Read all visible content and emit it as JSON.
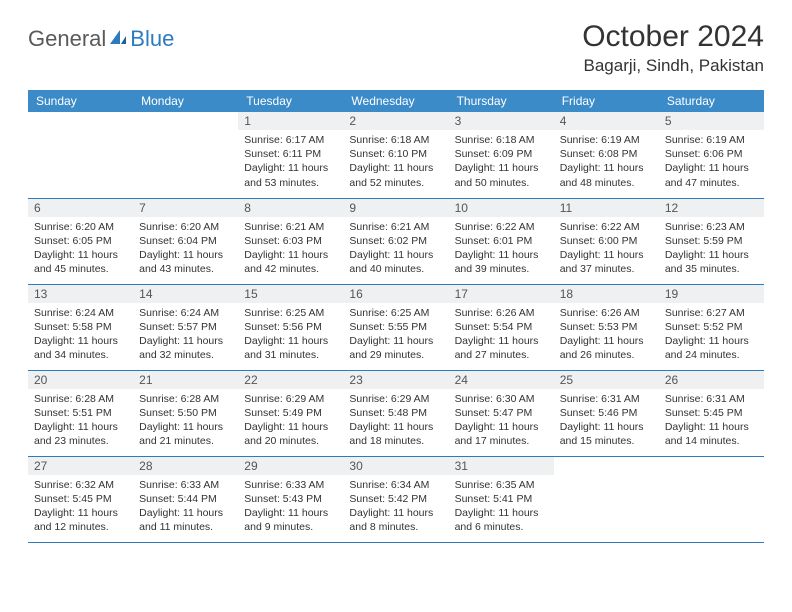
{
  "logo": {
    "text1": "General",
    "text2": "Blue"
  },
  "title": "October 2024",
  "location": "Bagarji, Sindh, Pakistan",
  "colors": {
    "header_bg": "#3b8bc9",
    "header_text": "#ffffff",
    "daynum_bg": "#eef0f1",
    "row_border": "#2d7bbf",
    "text": "#333333",
    "logo_gray": "#5a5a5a",
    "logo_blue": "#2d7bbf"
  },
  "weekdays": [
    "Sunday",
    "Monday",
    "Tuesday",
    "Wednesday",
    "Thursday",
    "Friday",
    "Saturday"
  ],
  "cells": [
    {
      "day": "",
      "sunrise": "",
      "sunset": "",
      "daylight": ""
    },
    {
      "day": "",
      "sunrise": "",
      "sunset": "",
      "daylight": ""
    },
    {
      "day": "1",
      "sunrise": "Sunrise: 6:17 AM",
      "sunset": "Sunset: 6:11 PM",
      "daylight": "Daylight: 11 hours and 53 minutes."
    },
    {
      "day": "2",
      "sunrise": "Sunrise: 6:18 AM",
      "sunset": "Sunset: 6:10 PM",
      "daylight": "Daylight: 11 hours and 52 minutes."
    },
    {
      "day": "3",
      "sunrise": "Sunrise: 6:18 AM",
      "sunset": "Sunset: 6:09 PM",
      "daylight": "Daylight: 11 hours and 50 minutes."
    },
    {
      "day": "4",
      "sunrise": "Sunrise: 6:19 AM",
      "sunset": "Sunset: 6:08 PM",
      "daylight": "Daylight: 11 hours and 48 minutes."
    },
    {
      "day": "5",
      "sunrise": "Sunrise: 6:19 AM",
      "sunset": "Sunset: 6:06 PM",
      "daylight": "Daylight: 11 hours and 47 minutes."
    },
    {
      "day": "6",
      "sunrise": "Sunrise: 6:20 AM",
      "sunset": "Sunset: 6:05 PM",
      "daylight": "Daylight: 11 hours and 45 minutes."
    },
    {
      "day": "7",
      "sunrise": "Sunrise: 6:20 AM",
      "sunset": "Sunset: 6:04 PM",
      "daylight": "Daylight: 11 hours and 43 minutes."
    },
    {
      "day": "8",
      "sunrise": "Sunrise: 6:21 AM",
      "sunset": "Sunset: 6:03 PM",
      "daylight": "Daylight: 11 hours and 42 minutes."
    },
    {
      "day": "9",
      "sunrise": "Sunrise: 6:21 AM",
      "sunset": "Sunset: 6:02 PM",
      "daylight": "Daylight: 11 hours and 40 minutes."
    },
    {
      "day": "10",
      "sunrise": "Sunrise: 6:22 AM",
      "sunset": "Sunset: 6:01 PM",
      "daylight": "Daylight: 11 hours and 39 minutes."
    },
    {
      "day": "11",
      "sunrise": "Sunrise: 6:22 AM",
      "sunset": "Sunset: 6:00 PM",
      "daylight": "Daylight: 11 hours and 37 minutes."
    },
    {
      "day": "12",
      "sunrise": "Sunrise: 6:23 AM",
      "sunset": "Sunset: 5:59 PM",
      "daylight": "Daylight: 11 hours and 35 minutes."
    },
    {
      "day": "13",
      "sunrise": "Sunrise: 6:24 AM",
      "sunset": "Sunset: 5:58 PM",
      "daylight": "Daylight: 11 hours and 34 minutes."
    },
    {
      "day": "14",
      "sunrise": "Sunrise: 6:24 AM",
      "sunset": "Sunset: 5:57 PM",
      "daylight": "Daylight: 11 hours and 32 minutes."
    },
    {
      "day": "15",
      "sunrise": "Sunrise: 6:25 AM",
      "sunset": "Sunset: 5:56 PM",
      "daylight": "Daylight: 11 hours and 31 minutes."
    },
    {
      "day": "16",
      "sunrise": "Sunrise: 6:25 AM",
      "sunset": "Sunset: 5:55 PM",
      "daylight": "Daylight: 11 hours and 29 minutes."
    },
    {
      "day": "17",
      "sunrise": "Sunrise: 6:26 AM",
      "sunset": "Sunset: 5:54 PM",
      "daylight": "Daylight: 11 hours and 27 minutes."
    },
    {
      "day": "18",
      "sunrise": "Sunrise: 6:26 AM",
      "sunset": "Sunset: 5:53 PM",
      "daylight": "Daylight: 11 hours and 26 minutes."
    },
    {
      "day": "19",
      "sunrise": "Sunrise: 6:27 AM",
      "sunset": "Sunset: 5:52 PM",
      "daylight": "Daylight: 11 hours and 24 minutes."
    },
    {
      "day": "20",
      "sunrise": "Sunrise: 6:28 AM",
      "sunset": "Sunset: 5:51 PM",
      "daylight": "Daylight: 11 hours and 23 minutes."
    },
    {
      "day": "21",
      "sunrise": "Sunrise: 6:28 AM",
      "sunset": "Sunset: 5:50 PM",
      "daylight": "Daylight: 11 hours and 21 minutes."
    },
    {
      "day": "22",
      "sunrise": "Sunrise: 6:29 AM",
      "sunset": "Sunset: 5:49 PM",
      "daylight": "Daylight: 11 hours and 20 minutes."
    },
    {
      "day": "23",
      "sunrise": "Sunrise: 6:29 AM",
      "sunset": "Sunset: 5:48 PM",
      "daylight": "Daylight: 11 hours and 18 minutes."
    },
    {
      "day": "24",
      "sunrise": "Sunrise: 6:30 AM",
      "sunset": "Sunset: 5:47 PM",
      "daylight": "Daylight: 11 hours and 17 minutes."
    },
    {
      "day": "25",
      "sunrise": "Sunrise: 6:31 AM",
      "sunset": "Sunset: 5:46 PM",
      "daylight": "Daylight: 11 hours and 15 minutes."
    },
    {
      "day": "26",
      "sunrise": "Sunrise: 6:31 AM",
      "sunset": "Sunset: 5:45 PM",
      "daylight": "Daylight: 11 hours and 14 minutes."
    },
    {
      "day": "27",
      "sunrise": "Sunrise: 6:32 AM",
      "sunset": "Sunset: 5:45 PM",
      "daylight": "Daylight: 11 hours and 12 minutes."
    },
    {
      "day": "28",
      "sunrise": "Sunrise: 6:33 AM",
      "sunset": "Sunset: 5:44 PM",
      "daylight": "Daylight: 11 hours and 11 minutes."
    },
    {
      "day": "29",
      "sunrise": "Sunrise: 6:33 AM",
      "sunset": "Sunset: 5:43 PM",
      "daylight": "Daylight: 11 hours and 9 minutes."
    },
    {
      "day": "30",
      "sunrise": "Sunrise: 6:34 AM",
      "sunset": "Sunset: 5:42 PM",
      "daylight": "Daylight: 11 hours and 8 minutes."
    },
    {
      "day": "31",
      "sunrise": "Sunrise: 6:35 AM",
      "sunset": "Sunset: 5:41 PM",
      "daylight": "Daylight: 11 hours and 6 minutes."
    },
    {
      "day": "",
      "sunrise": "",
      "sunset": "",
      "daylight": ""
    },
    {
      "day": "",
      "sunrise": "",
      "sunset": "",
      "daylight": ""
    }
  ]
}
